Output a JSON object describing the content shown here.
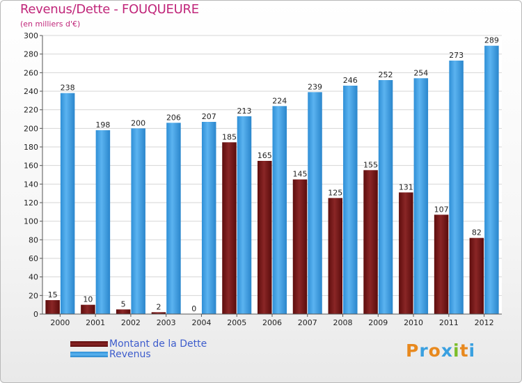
{
  "title": "Revenus/Dette - FOUQUEURE",
  "subtitle": "(en milliers d'€)",
  "brand": {
    "text": "Proxiti",
    "letters": [
      "P",
      "r",
      "o",
      "x",
      "i",
      "t",
      "i"
    ],
    "colors": [
      "#e8891e",
      "#3aa0e0",
      "#e8891e",
      "#3aa0e0",
      "#7cbd2a",
      "#e8891e",
      "#3aa0e0"
    ]
  },
  "colors": {
    "dette": "#7a1a1a",
    "revenus": "#3e9fe4",
    "title": "#c0267a",
    "legend_text": "#3d5ccc"
  },
  "chart_data": {
    "type": "bar",
    "title": "Revenus/Dette - FOUQUEURE",
    "ylabel": "(en milliers d'€)",
    "xlabel": "",
    "ylim": [
      0,
      300
    ],
    "yticks": [
      0,
      20,
      40,
      60,
      80,
      100,
      120,
      140,
      160,
      180,
      200,
      220,
      240,
      260,
      280,
      300
    ],
    "grid": true,
    "legend_position": "bottom-left",
    "categories": [
      "2000",
      "2001",
      "2002",
      "2003",
      "2004",
      "2005",
      "2006",
      "2007",
      "2008",
      "2009",
      "2010",
      "2011",
      "2012"
    ],
    "series": [
      {
        "name": "Montant de la Dette",
        "values": [
          15,
          10,
          5,
          2,
          0,
          185,
          165,
          145,
          125,
          155,
          131,
          107,
          82
        ]
      },
      {
        "name": "Revenus",
        "values": [
          238,
          198,
          200,
          206,
          207,
          213,
          224,
          239,
          246,
          252,
          254,
          273,
          289
        ]
      }
    ]
  }
}
